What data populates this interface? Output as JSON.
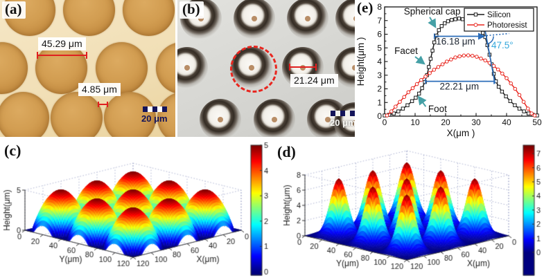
{
  "figure_labels": {
    "a": "(a)",
    "b": "(b)",
    "c": "(c)",
    "d": "(d)",
    "e": "(e)"
  },
  "panel_a": {
    "measurement_diameter": "45.29 μm",
    "measurement_gap": "4.85 μm",
    "scale_bar": "20 μm"
  },
  "panel_b": {
    "measurement_diameter": "21.24 μm",
    "scale_bar": "20 μm"
  },
  "chart_data": [
    {
      "panel": "e",
      "type": "line",
      "xlabel": "X(μm )",
      "ylabel": "Height(μm )",
      "xlim": [
        0,
        50
      ],
      "ylim": [
        0,
        8
      ],
      "xticks": [
        0,
        10,
        20,
        30,
        40,
        50
      ],
      "yticks": [
        0,
        1,
        2,
        3,
        4,
        5,
        6,
        7,
        8
      ],
      "legend_position": "top-right",
      "series": [
        {
          "name": "Silicon",
          "color": "#1a1a1a",
          "marker": "square",
          "x": [
            0,
            1.5,
            3,
            4.5,
            6,
            7.5,
            9,
            10.2,
            11.3,
            12.3,
            13.2,
            13.9,
            14.5,
            15.1,
            15.7,
            16.3,
            17,
            17.8,
            18.7,
            19.7,
            20.8,
            22,
            23.2,
            24.4,
            25.6,
            26.8,
            28,
            29.2,
            30.3,
            31.3,
            32.2,
            33,
            33.7,
            34.4,
            35.1,
            35.8,
            36.5,
            37.4,
            38.5,
            39.8,
            41.2,
            42.7,
            44.2,
            45.7,
            47.2,
            48.6,
            50
          ],
          "y": [
            0.05,
            0.1,
            0.2,
            0.35,
            0.55,
            0.8,
            1.1,
            1.35,
            1.65,
            2.05,
            2.5,
            3.0,
            3.6,
            4.2,
            4.8,
            5.4,
            5.9,
            6.3,
            6.6,
            6.8,
            6.95,
            7.05,
            7.1,
            7.15,
            7.1,
            7.05,
            6.95,
            6.8,
            6.6,
            6.35,
            6.1,
            5.8,
            5.2,
            4.5,
            3.8,
            3.1,
            2.55,
            2.15,
            1.8,
            1.45,
            1.1,
            0.8,
            0.55,
            0.35,
            0.2,
            0.1,
            0.05
          ]
        },
        {
          "name": "Photoresist",
          "color": "#e8261f",
          "marker": "circle",
          "x": [
            0.8,
            2.2,
            3.6,
            5,
            6.4,
            7.8,
            9.2,
            10.6,
            12,
            13.4,
            14.8,
            16.2,
            17.6,
            19,
            20.4,
            21.8,
            23.2,
            24.6,
            26,
            27.4,
            28.8,
            30.2,
            31.6,
            33,
            34.4,
            35.8,
            37.2,
            38.6,
            40,
            41.4,
            42.8,
            44.2,
            45.6,
            47,
            48.2,
            49.2
          ],
          "y": [
            0.05,
            0.35,
            0.7,
            1.05,
            1.4,
            1.75,
            2.05,
            2.35,
            2.65,
            2.9,
            3.15,
            3.4,
            3.6,
            3.8,
            4.0,
            4.15,
            4.3,
            4.38,
            4.44,
            4.45,
            4.42,
            4.35,
            4.22,
            4.08,
            3.9,
            3.68,
            3.42,
            3.12,
            2.78,
            2.4,
            2.0,
            1.55,
            1.05,
            0.55,
            0.2,
            0.05
          ]
        }
      ],
      "annotations": {
        "spherical_cap": "Spherical cap",
        "facet": "Facet",
        "foot": "Foot",
        "width_top": "16.18 μm",
        "width_bottom": "22.21 μm",
        "angle": "47.5°",
        "measure_color": "#2b6cb8",
        "arrow_color": "#45a0a6",
        "angle_color": "#35a8dc",
        "top_line": {
          "x1": 16.3,
          "x2": 33.2,
          "y": 5.85
        },
        "bottom_line": {
          "x1": 13.4,
          "x2": 35.9,
          "y": 2.55
        },
        "facet_line": {
          "x1": 32.9,
          "y1": 6.35,
          "x2": 36.2,
          "y2": 2.4
        }
      }
    },
    {
      "panel": "c",
      "type": "surface",
      "xlabel": "X(μm)",
      "ylabel": "Y(μm)",
      "zlabel": "Height(μm)",
      "xticks": [
        0,
        20,
        40,
        60,
        80,
        100,
        120
      ],
      "yticks": [
        0,
        20,
        40,
        60,
        80,
        100,
        120
      ],
      "zticks": [
        0,
        5
      ],
      "xlim": [
        0,
        120
      ],
      "ylim": [
        0,
        120
      ],
      "zlim": [
        0,
        5
      ],
      "colorbar_ticks": [
        0,
        1,
        2,
        3,
        4,
        5
      ],
      "color_max": 5,
      "model": "spherical-cap-array",
      "peak_height": 5,
      "lens_base_radius": 22.6,
      "centers": [
        20,
        60,
        100
      ]
    },
    {
      "panel": "d",
      "type": "surface",
      "xlabel": "X(μm)",
      "ylabel": "Y(μm)",
      "zlabel": "Height(μm)",
      "xticks": [
        0,
        20,
        40,
        60,
        80,
        100,
        120
      ],
      "yticks": [
        0,
        20,
        40,
        60,
        80,
        100,
        120
      ],
      "zticks": [
        0,
        2,
        4,
        6,
        8
      ],
      "xlim": [
        0,
        120
      ],
      "ylim": [
        0,
        120
      ],
      "zlim": [
        0,
        8
      ],
      "colorbar_ticks": [
        0,
        1,
        2,
        3,
        4,
        5,
        6,
        7
      ],
      "color_max": 7.5,
      "model": "gaussian-array",
      "peak_height": 7.5,
      "sigma": 7.0,
      "centers": [
        20,
        60,
        100
      ]
    }
  ]
}
